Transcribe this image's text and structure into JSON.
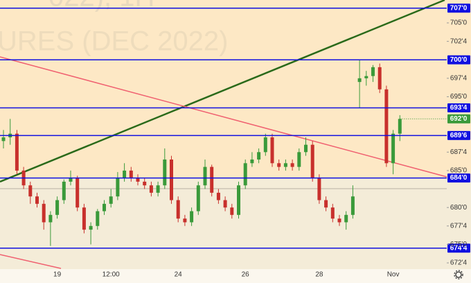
{
  "chart_data": {
    "type": "candlestick",
    "watermark_top": "022), 1H",
    "watermark": "URES (DEC 2022)",
    "categories": [
      null,
      null,
      null,
      null,
      null,
      null,
      null,
      null,
      "19",
      null,
      null,
      null,
      null,
      null,
      null,
      null,
      "12:00",
      null,
      null,
      null,
      null,
      null,
      null,
      null,
      null,
      null,
      "24",
      null,
      null,
      null,
      null,
      null,
      null,
      null,
      null,
      null,
      "26",
      null,
      null,
      null,
      null,
      null,
      null,
      null,
      null,
      null,
      null,
      "28",
      null,
      null,
      null,
      null,
      null,
      null,
      null,
      null,
      null,
      null,
      "Nov",
      null
    ],
    "open": [
      689.0,
      689.5,
      690.0,
      685.0,
      683.0,
      681.5,
      680.5,
      678.0,
      679.0,
      681.0,
      683.5,
      684.0,
      680.0,
      677.0,
      677.5,
      679.5,
      680.5,
      681.5,
      684.0,
      685.0,
      684.0,
      683.5,
      683.0,
      682.0,
      683.0,
      686.5,
      681.0,
      678.5,
      678.0,
      679.5,
      683.0,
      685.5,
      682.0,
      681.0,
      680.0,
      679.0,
      683.0,
      686.0,
      686.5,
      687.5,
      689.5,
      686.0,
      685.5,
      686.0,
      685.5,
      687.5,
      688.5,
      684.0,
      681.0,
      680.0,
      678.5,
      678.0,
      679.0,
      697.0,
      697.5,
      697.8,
      699.0,
      696.0,
      686.0,
      690.0
    ],
    "high": [
      690.5,
      692.0,
      690.5,
      685.5,
      683.5,
      682.0,
      681.0,
      679.5,
      681.5,
      683.8,
      685.0,
      684.3,
      680.5,
      678.0,
      679.8,
      681.0,
      682.5,
      684.8,
      686.0,
      685.5,
      684.5,
      684.0,
      683.5,
      683.5,
      688.0,
      687.0,
      681.5,
      679.0,
      680.0,
      683.5,
      686.5,
      685.8,
      682.5,
      681.5,
      680.5,
      683.5,
      686.5,
      687.5,
      688.0,
      690.0,
      690.0,
      686.5,
      686.5,
      686.5,
      688.0,
      689.5,
      689.0,
      684.5,
      681.5,
      680.5,
      679.0,
      679.5,
      683.0,
      700.0,
      698.5,
      699.3,
      699.5,
      696.5,
      690.5,
      692.5
    ],
    "low": [
      688.0,
      688.5,
      684.5,
      682.5,
      680.5,
      680.0,
      677.0,
      674.8,
      678.5,
      680.5,
      683.0,
      679.5,
      676.5,
      675.0,
      677.0,
      679.0,
      680.0,
      681.0,
      683.5,
      683.5,
      683.0,
      682.5,
      681.5,
      681.5,
      682.5,
      680.5,
      678.0,
      677.5,
      677.5,
      679.0,
      682.5,
      681.5,
      680.5,
      679.5,
      678.5,
      678.5,
      682.5,
      685.5,
      686.0,
      687.0,
      685.5,
      685.0,
      685.0,
      685.0,
      685.0,
      687.0,
      683.5,
      680.5,
      679.5,
      678.0,
      677.5,
      677.0,
      678.5,
      693.5,
      696.5,
      697.0,
      695.5,
      685.5,
      684.5,
      689.0
    ],
    "close": [
      689.5,
      690.0,
      685.0,
      683.0,
      681.5,
      680.5,
      678.0,
      679.0,
      681.0,
      683.5,
      684.0,
      680.0,
      677.0,
      677.5,
      679.5,
      680.5,
      681.5,
      684.0,
      685.0,
      684.0,
      683.5,
      683.0,
      682.0,
      683.0,
      686.5,
      681.0,
      678.5,
      678.0,
      679.5,
      683.0,
      685.5,
      682.0,
      681.0,
      680.0,
      679.0,
      683.0,
      686.0,
      686.5,
      687.5,
      689.5,
      686.0,
      685.5,
      686.0,
      685.5,
      687.5,
      688.5,
      684.0,
      681.0,
      680.0,
      678.5,
      678.0,
      679.0,
      681.5,
      697.5,
      697.8,
      699.0,
      696.0,
      686.0,
      690.0,
      692.0
    ],
    "up_color": "#3a9a3a",
    "down_color": "#c8302c",
    "ylim": [
      671.75,
      708.1
    ],
    "yticks": [
      {
        "value": 705,
        "label": "705'0"
      },
      {
        "value": 702.5,
        "label": "702'4"
      },
      {
        "value": 697.5,
        "label": "697'4"
      },
      {
        "value": 695,
        "label": "695'0"
      },
      {
        "value": 687.5,
        "label": "687'4"
      },
      {
        "value": 685,
        "label": "685'0"
      },
      {
        "value": 680,
        "label": "680'0"
      },
      {
        "value": 677.5,
        "label": "677'4"
      },
      {
        "value": 675,
        "label": "675'0"
      },
      {
        "value": 672.5,
        "label": "672'4"
      }
    ],
    "levels": [
      {
        "value": 707,
        "label": "707'0"
      },
      {
        "value": 700,
        "label": "700'0"
      },
      {
        "value": 693.5,
        "label": "693'4"
      },
      {
        "value": 689.75,
        "label": "689'6"
      },
      {
        "value": 684,
        "label": "684'0"
      },
      {
        "value": 674.5,
        "label": "674'4"
      }
    ],
    "level_color": "#1010e0",
    "last_price": {
      "value": 692,
      "label": "692'0"
    },
    "last_color": "#3a9a3a"
  }
}
